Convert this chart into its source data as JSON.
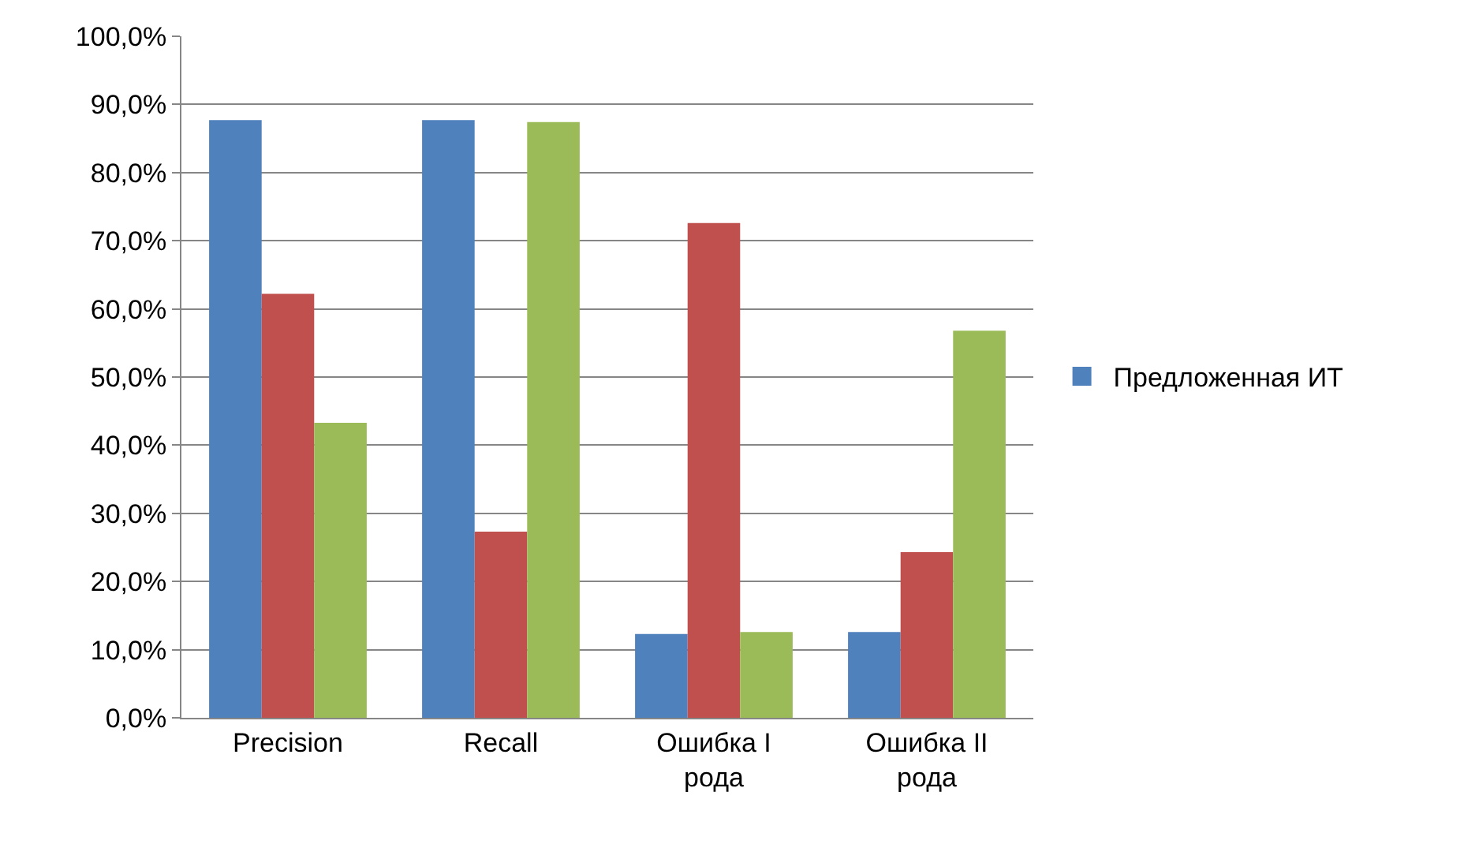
{
  "chart_data": {
    "type": "bar",
    "categories": [
      "Precision",
      "Recall",
      "Ошибка I рода",
      "Ошибка II рода"
    ],
    "series": [
      {
        "name": "Предложенная ИТ",
        "color": "#4f81bd",
        "values": [
          87.7,
          87.7,
          12.3,
          12.6
        ]
      },
      {
        "color": "#c0504d",
        "values": [
          62.2,
          27.3,
          72.6,
          24.3
        ]
      },
      {
        "color": "#9bbb59",
        "values": [
          43.3,
          87.4,
          12.6,
          56.8
        ]
      }
    ],
    "ylim": [
      0,
      100
    ],
    "yticks": [
      {
        "value": 0,
        "label": "0,0%"
      },
      {
        "value": 10,
        "label": "10,0%"
      },
      {
        "value": 20,
        "label": "20,0%"
      },
      {
        "value": 30,
        "label": "30,0%"
      },
      {
        "value": 40,
        "label": "40,0%"
      },
      {
        "value": 50,
        "label": "50,0%"
      },
      {
        "value": 60,
        "label": "60,0%"
      },
      {
        "value": 70,
        "label": "70,0%"
      },
      {
        "value": 80,
        "label": "80,0%"
      },
      {
        "value": 90,
        "label": "90,0%"
      },
      {
        "value": 100,
        "label": "100,0%"
      }
    ],
    "grid": "y",
    "legend": "right"
  }
}
